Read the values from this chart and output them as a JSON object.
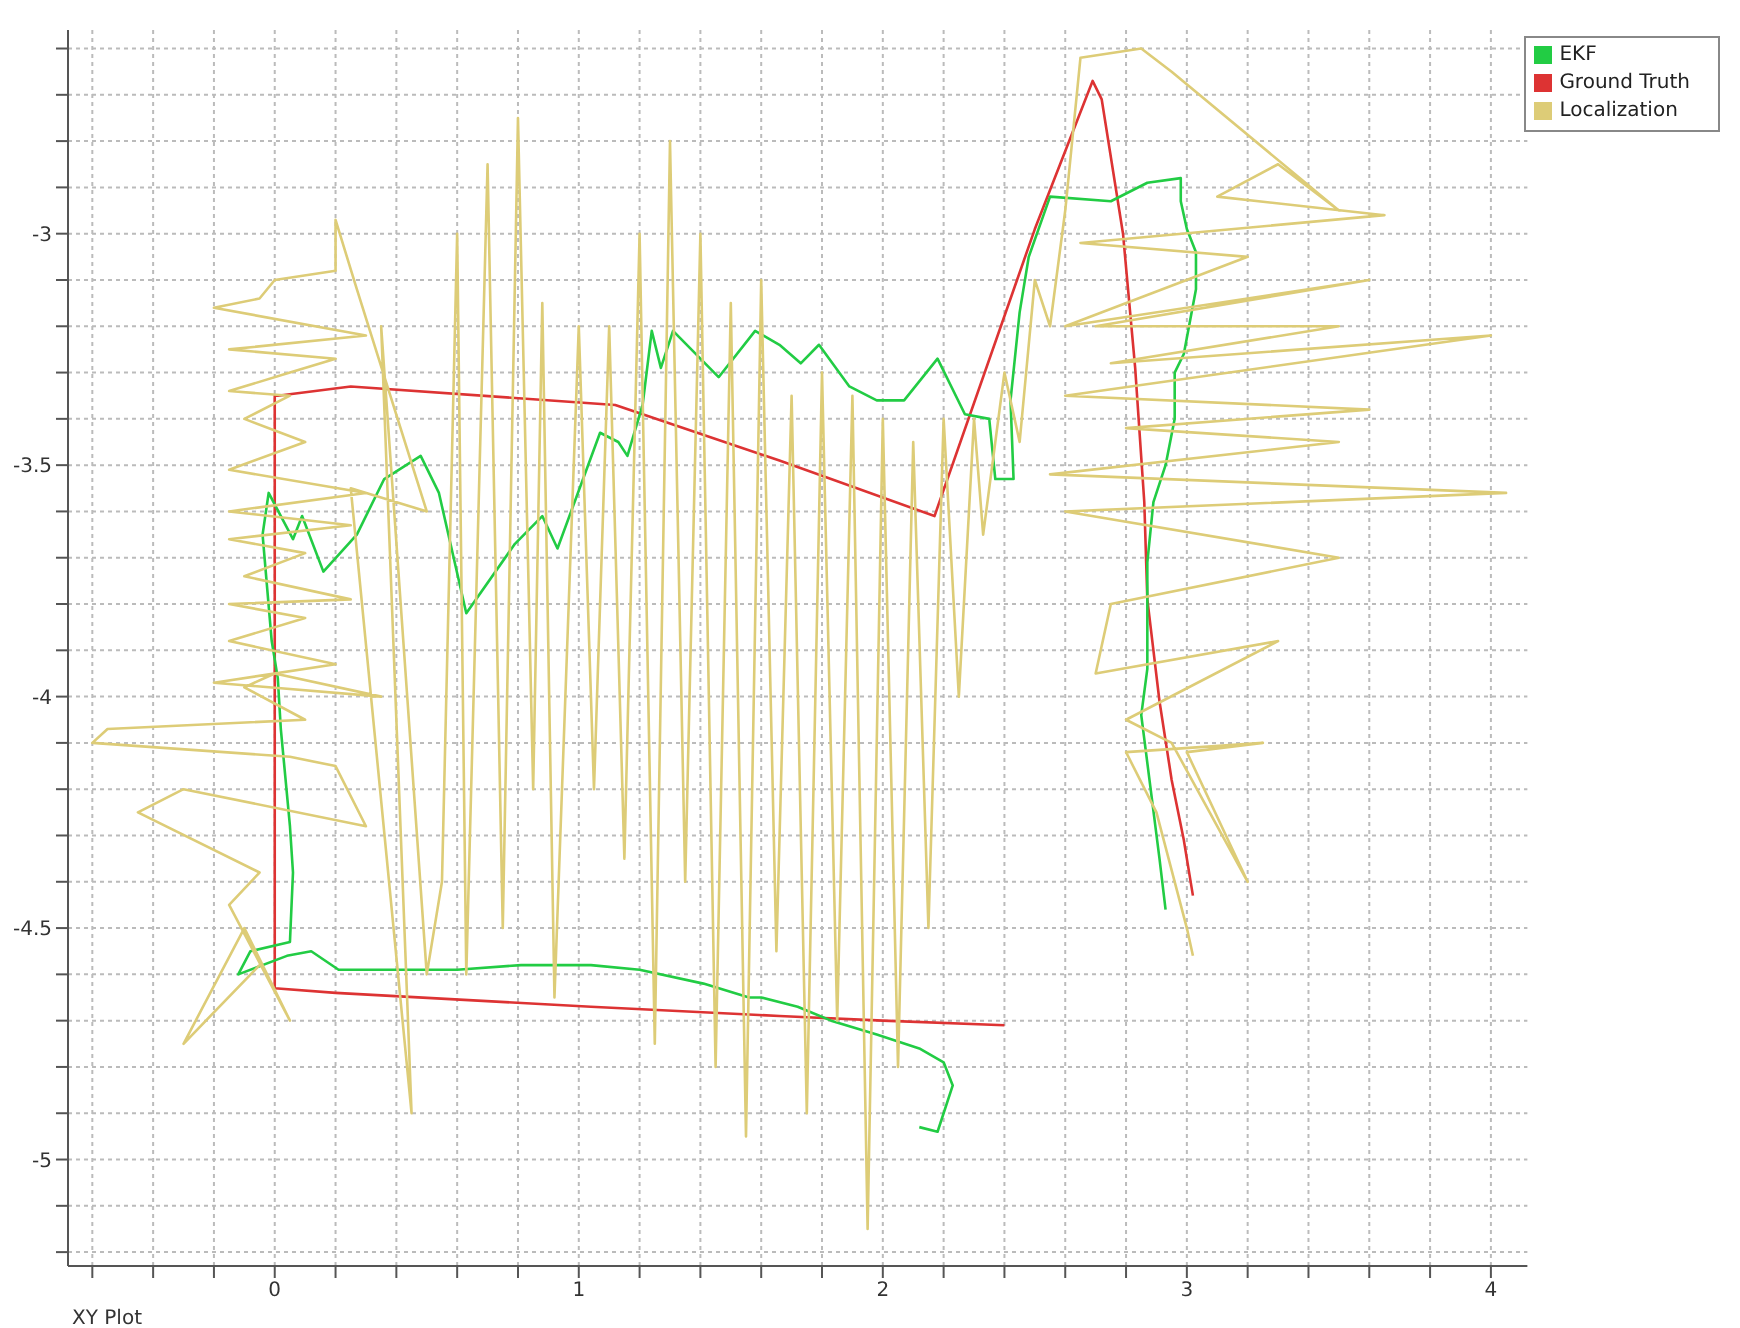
{
  "chart_data": {
    "type": "line",
    "xlabel": "XY Plot",
    "xlim": [
      -0.68,
      4.12
    ],
    "ylim": [
      -5.23,
      -2.56
    ],
    "xticks": [
      {
        "value": -0.6,
        "label": null
      },
      {
        "value": -0.4,
        "label": null
      },
      {
        "value": -0.2,
        "label": null
      },
      0,
      {
        "value": 0.2,
        "label": null
      },
      {
        "value": 0.4,
        "label": null
      },
      {
        "value": 0.6,
        "label": null
      },
      {
        "value": 0.8,
        "label": null
      },
      1,
      {
        "value": 1.2,
        "label": null
      },
      {
        "value": 1.4,
        "label": null
      },
      {
        "value": 1.6,
        "label": null
      },
      {
        "value": 1.8,
        "label": null
      },
      2,
      {
        "value": 2.2,
        "label": null
      },
      {
        "value": 2.4,
        "label": null
      },
      {
        "value": 2.6,
        "label": null
      },
      {
        "value": 2.8,
        "label": null
      },
      3,
      {
        "value": 3.2,
        "label": null
      },
      {
        "value": 3.4,
        "label": null
      },
      {
        "value": 3.6,
        "label": null
      },
      {
        "value": 3.8,
        "label": null
      },
      4
    ],
    "yticks": [
      {
        "value": -5.2,
        "label": null
      },
      {
        "value": -5.1,
        "label": null
      },
      -5,
      {
        "value": -4.9,
        "label": null
      },
      {
        "value": -4.8,
        "label": null
      },
      {
        "value": -4.7,
        "label": null
      },
      {
        "value": -4.6,
        "label": null
      },
      -4.5,
      {
        "value": -4.4,
        "label": null
      },
      {
        "value": -4.3,
        "label": null
      },
      {
        "value": -4.2,
        "label": null
      },
      {
        "value": -4.1,
        "label": null
      },
      -4,
      {
        "value": -3.9,
        "label": null
      },
      {
        "value": -3.8,
        "label": null
      },
      {
        "value": -3.7,
        "label": null
      },
      {
        "value": -3.6,
        "label": null
      },
      -3.5,
      {
        "value": -3.4,
        "label": null
      },
      {
        "value": -3.3,
        "label": null
      },
      {
        "value": -3.2,
        "label": null
      },
      {
        "value": -3.1,
        "label": null
      },
      -3,
      {
        "value": -2.9,
        "label": null
      },
      {
        "value": -2.8,
        "label": null
      },
      {
        "value": -2.7,
        "label": null
      },
      {
        "value": -2.6,
        "label": null
      }
    ],
    "grid": true,
    "legend": "top right",
    "marker": "none",
    "line_style": "solid",
    "series": [
      {
        "name": "Ground Truth",
        "color": "#dd3333",
        "x": [
          2.4,
          2.0,
          1.66,
          1.04,
          0.2,
          0,
          0,
          0.01,
          0.25,
          1.12,
          1.21,
          1.66,
          2.17,
          2.5,
          2.69,
          2.72,
          2.79,
          2.83,
          2.86,
          2.87,
          2.91,
          2.95,
          2.99,
          3.02
        ],
        "values": [
          -4.71,
          -4.7,
          -4.69,
          -4.67,
          -4.64,
          -4.63,
          -3.35,
          -3.35,
          -3.33,
          -3.37,
          -3.39,
          -3.49,
          -3.61,
          -2.99,
          -2.67,
          -2.71,
          -3.0,
          -3.29,
          -3.58,
          -3.79,
          -4.01,
          -4.18,
          -4.31,
          -4.43
        ]
      },
      {
        "name": "EKF",
        "color": "#22cc44",
        "x": [
          2.12,
          2.18,
          2.23,
          2.2,
          2.12,
          1.98,
          1.83,
          1.72,
          1.6,
          1.56,
          1.41,
          1.2,
          1.04,
          0.81,
          0.6,
          0.21,
          0.12,
          0.04,
          -0.12,
          -0.08,
          0.05,
          0.06,
          0.05,
          0.02,
          0.01,
          -0.01,
          -0.04,
          -0.02,
          0.06,
          0.09,
          0.16,
          0.27,
          0.36,
          0.48,
          0.54,
          0.63,
          0.79,
          0.88,
          0.93,
          1.07,
          1.13,
          1.16,
          1.21,
          1.24,
          1.27,
          1.31,
          1.46,
          1.58,
          1.66,
          1.73,
          1.79,
          1.89,
          1.98,
          2.07,
          2.18,
          2.27,
          2.35,
          2.37,
          2.43,
          2.42,
          2.45,
          2.48,
          2.55,
          2.75,
          2.87,
          2.98,
          2.98,
          3.0,
          3.03,
          3.03,
          2.99,
          2.96,
          2.96,
          2.93,
          2.89,
          2.87,
          2.87,
          2.85,
          2.91,
          2.93
        ],
        "values": [
          -4.93,
          -4.94,
          -4.84,
          -4.79,
          -4.76,
          -4.73,
          -4.7,
          -4.67,
          -4.65,
          -4.65,
          -4.62,
          -4.59,
          -4.58,
          -4.58,
          -4.59,
          -4.59,
          -4.55,
          -4.56,
          -4.6,
          -4.55,
          -4.53,
          -4.38,
          -4.28,
          -4.07,
          -3.96,
          -3.88,
          -3.65,
          -3.56,
          -3.66,
          -3.61,
          -3.73,
          -3.65,
          -3.53,
          -3.48,
          -3.56,
          -3.82,
          -3.67,
          -3.61,
          -3.68,
          -3.43,
          -3.45,
          -3.48,
          -3.37,
          -3.21,
          -3.29,
          -3.21,
          -3.31,
          -3.21,
          -3.24,
          -3.28,
          -3.24,
          -3.33,
          -3.36,
          -3.36,
          -3.27,
          -3.39,
          -3.4,
          -3.53,
          -3.53,
          -3.36,
          -3.17,
          -3.05,
          -2.92,
          -2.93,
          -2.89,
          -2.88,
          -2.93,
          -2.99,
          -3.04,
          -3.12,
          -3.26,
          -3.3,
          -3.4,
          -3.5,
          -3.58,
          -3.71,
          -3.94,
          -4.04,
          -4.35,
          -4.46
        ]
      },
      {
        "name": "Localization",
        "color": "#ddcc77",
        "x": [
          -0.05,
          -0.3,
          -0.1,
          0.05,
          -0.15,
          -0.05,
          -0.45,
          -0.3,
          0.3,
          0.2,
          0.05,
          -0.6,
          -0.55,
          0.1,
          -0.1,
          0.0,
          0.35,
          -0.2,
          0.2,
          -0.15,
          0.1,
          -0.15,
          0.25,
          -0.1,
          0.1,
          -0.15,
          0.25,
          -0.15,
          0.3,
          -0.15,
          0.1,
          -0.1,
          0.05,
          -0.15,
          0.05,
          0.2,
          -0.15,
          0.3,
          -0.2,
          -0.05,
          0.0,
          0.2,
          0.2,
          0.27,
          0.5,
          0.25,
          0.45,
          0.35,
          0.5,
          0.55,
          0.6,
          0.63,
          0.7,
          0.75,
          0.8,
          0.85,
          0.88,
          0.92,
          1.0,
          1.05,
          1.1,
          1.15,
          1.2,
          1.25,
          1.3,
          1.35,
          1.4,
          1.45,
          1.5,
          1.55,
          1.6,
          1.65,
          1.7,
          1.75,
          1.8,
          1.85,
          1.9,
          1.95,
          2.0,
          2.05,
          2.1,
          2.15,
          2.2,
          2.25,
          2.3,
          2.33,
          2.4,
          2.45,
          2.5,
          2.55,
          2.6,
          2.65,
          2.85,
          2.95,
          3.5,
          3.3,
          3.1,
          3.65,
          2.65,
          3.2,
          2.6,
          3.6,
          2.7,
          3.5,
          2.75,
          4.0,
          2.6,
          3.6,
          2.8,
          3.5,
          2.55,
          4.05,
          2.6,
          3.5,
          2.75,
          2.7,
          3.3,
          2.8,
          2.95,
          3.2,
          3.0,
          3.25,
          2.8,
          2.9,
          3.0,
          3.02
        ],
        "values": [
          -4.58,
          -4.75,
          -4.5,
          -4.7,
          -4.45,
          -4.38,
          -4.25,
          -4.2,
          -4.28,
          -4.15,
          -4.13,
          -4.1,
          -4.07,
          -4.05,
          -3.98,
          -3.95,
          -4.0,
          -3.97,
          -3.93,
          -3.88,
          -3.83,
          -3.8,
          -3.79,
          -3.74,
          -3.69,
          -3.66,
          -3.63,
          -3.6,
          -3.56,
          -3.51,
          -3.45,
          -3.4,
          -3.35,
          -3.34,
          -3.3,
          -3.27,
          -3.25,
          -3.22,
          -3.16,
          -3.14,
          -3.1,
          -3.08,
          -2.97,
          -3.12,
          -3.6,
          -3.55,
          -4.9,
          -3.2,
          -4.6,
          -4.4,
          -3.0,
          -4.6,
          -2.85,
          -4.5,
          -2.75,
          -4.2,
          -3.15,
          -4.65,
          -3.2,
          -4.2,
          -3.2,
          -4.35,
          -3.0,
          -4.75,
          -2.8,
          -4.4,
          -3.0,
          -4.8,
          -3.15,
          -4.95,
          -3.1,
          -4.55,
          -3.35,
          -4.9,
          -3.3,
          -4.7,
          -3.35,
          -5.15,
          -3.4,
          -4.8,
          -3.45,
          -4.5,
          -3.4,
          -4.0,
          -3.4,
          -3.65,
          -3.3,
          -3.45,
          -3.1,
          -3.2,
          -2.95,
          -2.62,
          -2.6,
          -2.65,
          -2.95,
          -2.85,
          -2.92,
          -2.96,
          -3.02,
          -3.05,
          -3.2,
          -3.1,
          -3.2,
          -3.2,
          -3.28,
          -3.22,
          -3.35,
          -3.38,
          -3.42,
          -3.45,
          -3.52,
          -3.56,
          -3.6,
          -3.7,
          -3.8,
          -3.95,
          -3.88,
          -4.05,
          -4.1,
          -4.4,
          -4.12,
          -4.1,
          -4.12,
          -4.25,
          -4.5,
          -4.56
        ]
      }
    ]
  }
}
